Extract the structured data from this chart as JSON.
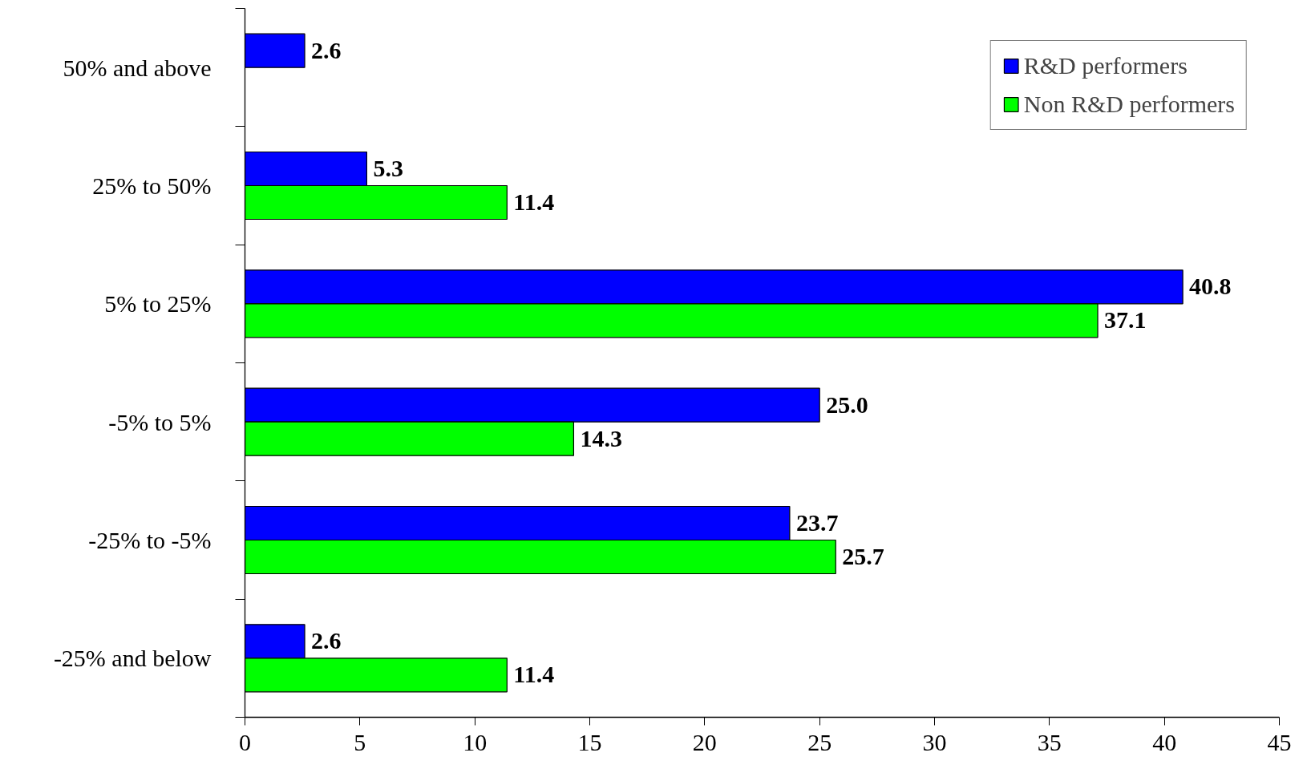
{
  "chart_data": {
    "type": "bar",
    "orientation": "horizontal",
    "categories": [
      "50% and above",
      "25% to 50%",
      "5% to 25%",
      "-5% to 5%",
      "-25% to -5%",
      "-25% and below"
    ],
    "series": [
      {
        "name": "R&D performers",
        "color": "#0000ff",
        "values": [
          2.6,
          5.3,
          40.8,
          25.0,
          23.7,
          2.6
        ],
        "value_labels": [
          "2.6",
          "5.3",
          "40.8",
          "25.0",
          "23.7",
          "2.6"
        ]
      },
      {
        "name": "Non R&D performers",
        "color": "#00ff00",
        "values": [
          null,
          11.4,
          37.1,
          14.3,
          25.7,
          11.4
        ],
        "value_labels": [
          null,
          "11.4",
          "37.1",
          "14.3",
          "25.7",
          "11.4"
        ]
      }
    ],
    "xlim": [
      0,
      45
    ],
    "xticks": [
      0,
      5,
      10,
      15,
      20,
      25,
      30,
      35,
      40,
      45
    ],
    "grid": false,
    "legend": "top right"
  }
}
